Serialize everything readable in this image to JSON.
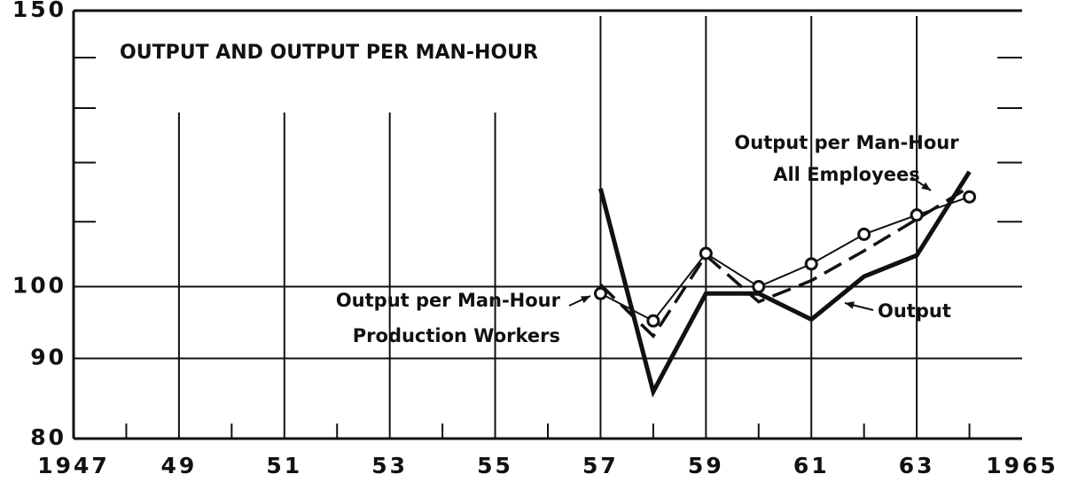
{
  "chart_data": {
    "type": "line",
    "title": "OUTPUT AND OUTPUT PER MAN-HOUR",
    "x": [
      1957,
      1958,
      1959,
      1960,
      1961,
      1962,
      1963,
      1964
    ],
    "series": [
      {
        "name": [
          "Output"
        ],
        "color": "#111",
        "style": "thick",
        "values": [
          115.5,
          85.7,
          99,
          99,
          95.3,
          101.5,
          104.7,
          118.4
        ]
      },
      {
        "name": [
          "Output per Man-Hour",
          "Production Workers"
        ],
        "color": "#111",
        "style": "dashed",
        "values": [
          100.3,
          93,
          104.7,
          97.8,
          100.9,
          105.4,
          110.4,
          115.8
        ]
      },
      {
        "name": [
          "Output per Man-Hour",
          "All Employees"
        ],
        "color": "#111",
        "style": "circles",
        "values": [
          99,
          95.1,
          105,
          100,
          103.4,
          108,
          111.1,
          114.1
        ]
      }
    ],
    "xlim": [
      1947,
      1965
    ],
    "xticks": [
      1947,
      {
        "value": 1949,
        "label": "49"
      },
      {
        "value": 1951,
        "label": "51"
      },
      {
        "value": 1953,
        "label": "53"
      },
      {
        "value": 1955,
        "label": "55"
      },
      {
        "value": 1957,
        "label": "57"
      },
      {
        "value": 1959,
        "label": "59"
      },
      {
        "value": 1961,
        "label": "61"
      },
      {
        "value": 1963,
        "label": "63"
      },
      1965
    ],
    "xminor": [
      1948,
      1950,
      1952,
      1954,
      1956,
      1958,
      1960,
      1962,
      1964
    ],
    "ylim": [
      80,
      150
    ],
    "yticks": [
      80,
      90,
      100,
      150
    ],
    "yminor": [
      110,
      120,
      130,
      140
    ],
    "log_y": true
  }
}
